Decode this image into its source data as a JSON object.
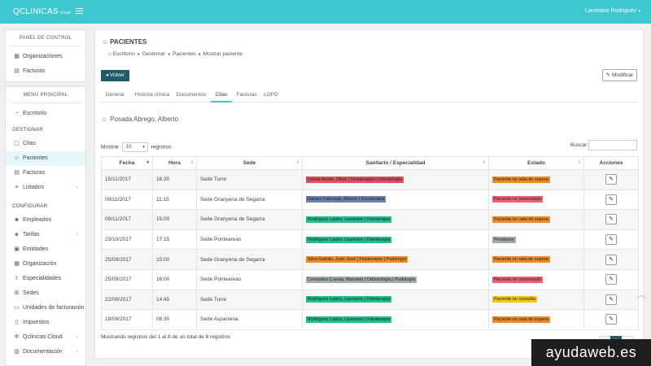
{
  "header": {
    "brand": "QCLINICAS",
    "brand_sub": "cloud",
    "user": "Laureano Rodriguez"
  },
  "sidebar": {
    "panel_title": "PANEL DE CONTROL",
    "panel_items": [
      {
        "label": "Organizaciones",
        "icon": "building-icon"
      },
      {
        "label": "Facturas",
        "icon": "invoice-icon"
      }
    ],
    "menu_title": "MENÚ PRINCIPAL",
    "escritorio": "Escritorio",
    "gestionar_title": "GESTIONAR",
    "gestionar_items": [
      {
        "label": "Citas"
      },
      {
        "label": "Pacientes"
      },
      {
        "label": "Facturas"
      },
      {
        "label": "Listados"
      }
    ],
    "configurar_title": "CONFIGURAR",
    "configurar_items": [
      {
        "label": "Empleados"
      },
      {
        "label": "Tarifas"
      },
      {
        "label": "Entidades"
      },
      {
        "label": "Organización"
      },
      {
        "label": "Especialidades"
      },
      {
        "label": "Sedes"
      },
      {
        "label": "Unidades de facturación"
      },
      {
        "label": "Impuestos"
      },
      {
        "label": "Qclinicas Cloud"
      },
      {
        "label": "Documentación"
      }
    ]
  },
  "page": {
    "title": "PACIENTES",
    "breadcrumb": [
      "Escritorio",
      "Gestionar",
      "Pacientes",
      "Mostrar paciente"
    ],
    "back_label": "Volver",
    "edit_label": "Modificar",
    "tabs": [
      "General",
      "Historia clínica",
      "Documentos",
      "Citas",
      "Facturas",
      "LOPD"
    ],
    "active_tab": "Citas",
    "patient_name": "Posada Abrego, Alberto"
  },
  "table": {
    "show_prefix": "Mostrar",
    "show_value": "10",
    "show_suffix": "registros",
    "search_label": "Buscar:",
    "search_value": "",
    "headers": [
      "Fecha",
      "Hora",
      "Sede",
      "Sanitario / Especialidad",
      "Estado",
      "Acciones"
    ],
    "rows": [
      {
        "fecha": "15/11/2017",
        "hora": "16:30",
        "sede": "Sede Turre",
        "sanitario": "Lerma Reina, Oliver | Fisioterapia | Odontología",
        "sanitario_color": "#e0525f",
        "estado": "Paciente en sala de espera",
        "estado_color": "#f08a24"
      },
      {
        "fecha": "09/11/2017",
        "hora": "11:15",
        "sede": "Sede Granyena de Segarra",
        "sanitario": "Darazo Fabregat, Alberto | Fisioterapia",
        "sanitario_color": "#6b83b3",
        "estado": "Paciente no presentado",
        "estado_color": "#f06272"
      },
      {
        "fecha": "09/11/2017",
        "hora": "15:00",
        "sede": "Sede Granyena de Segarra",
        "sanitario": "Rodríguez Lastra, Laureano | Fisioterapia",
        "sanitario_color": "#1fbf8f",
        "estado": "Paciente en sala de espera",
        "estado_color": "#f08a24"
      },
      {
        "fecha": "23/10/2017",
        "hora": "17:15",
        "sede": "Sede Ponteareas",
        "sanitario": "Rodríguez Lastra, Laureano | Fisioterapia",
        "sanitario_color": "#1fbf8f",
        "estado": "Pendiente",
        "estado_color": "#a4acaa"
      },
      {
        "fecha": "25/09/2017",
        "hora": "15:00",
        "sede": "Sede Granyena de Segarra",
        "sanitario": "Silva Galván, Juan José | Fisioterapia | Podología",
        "sanitario_color": "#f08a24",
        "estado": "Paciente en sala de espera",
        "estado_color": "#f08a24"
      },
      {
        "fecha": "25/09/2017",
        "hora": "16:00",
        "sede": "Sede Ponteareas",
        "sanitario": "Cervantes Cuesta, Manuela | Odontología | Podología",
        "sanitario_color": "#a4acaa",
        "estado": "Paciente no presentado",
        "estado_color": "#f06272"
      },
      {
        "fecha": "22/09/2017",
        "hora": "14:45",
        "sede": "Sede Turre",
        "sanitario": "Rodríguez Lastra, Laureano | Fisioterapia",
        "sanitario_color": "#1fbf8f",
        "estado": "Paciente en consulta",
        "estado_color": "#f5c518"
      },
      {
        "fecha": "18/09/2017",
        "hora": "08:30",
        "sede": "Sede Asparrena",
        "sanitario": "Rodríguez Lastra, Laureano | Fisioterapia",
        "sanitario_color": "#1fbf8f",
        "estado": "Paciente en sala de espera",
        "estado_color": "#f08a24"
      }
    ],
    "info": "Mostrando registros del 1 al 8 de un total de 8 registros",
    "pages": [
      "‹",
      "1",
      "›"
    ],
    "current_page": "1"
  },
  "watermark": "ayudaweb.es",
  "colors": {
    "topbar": "#3dc7cf",
    "primary": "#1f5c66",
    "accent": "#3dc7cf"
  }
}
